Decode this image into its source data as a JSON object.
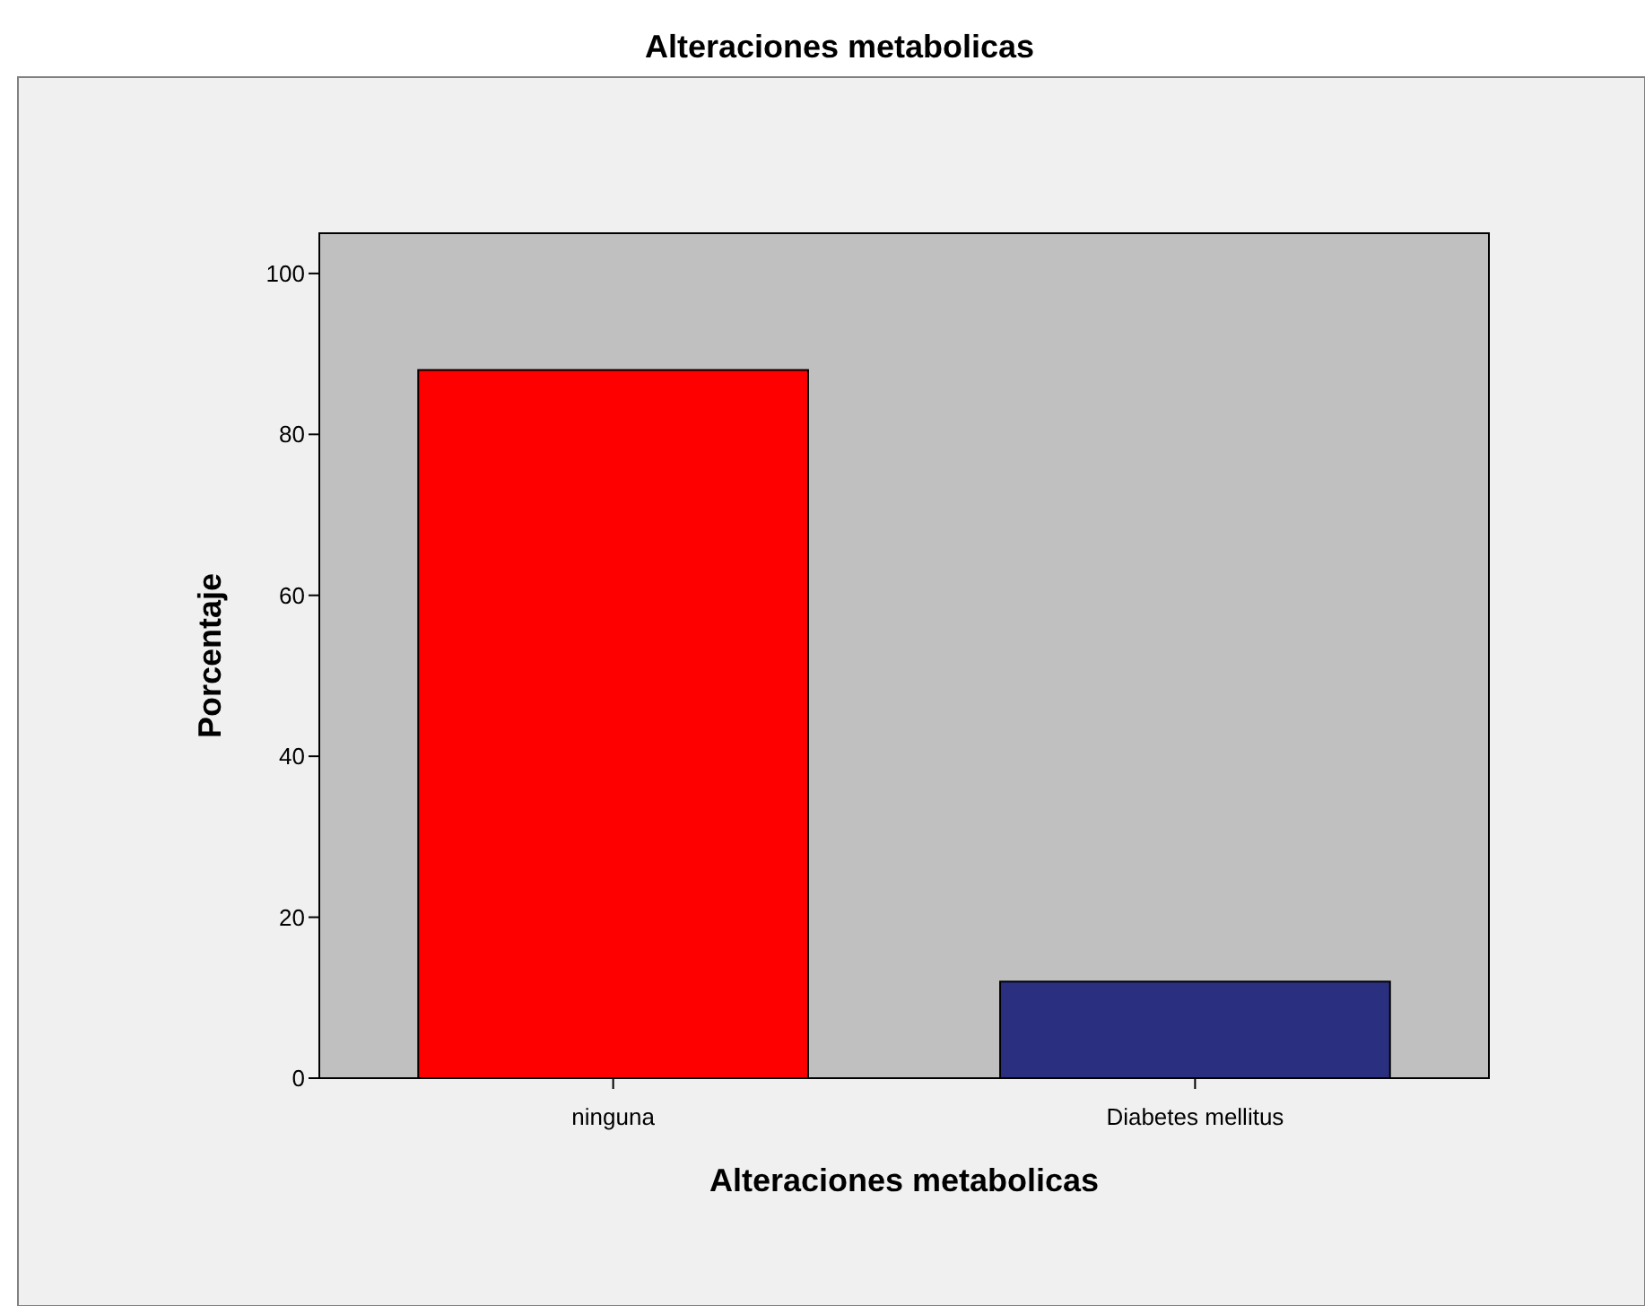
{
  "chart_data": {
    "type": "bar",
    "title": "Alteraciones metabolicas",
    "xlabel": "Alteraciones metabolicas",
    "ylabel": "Porcentaje",
    "categories": [
      "ninguna",
      "Diabetes mellitus"
    ],
    "values": [
      88,
      12
    ],
    "colors": [
      "#ff0000",
      "#2b2f80"
    ],
    "ylim": [
      0,
      105
    ],
    "yticks": [
      0,
      20,
      40,
      60,
      80,
      100
    ],
    "grid": false
  }
}
